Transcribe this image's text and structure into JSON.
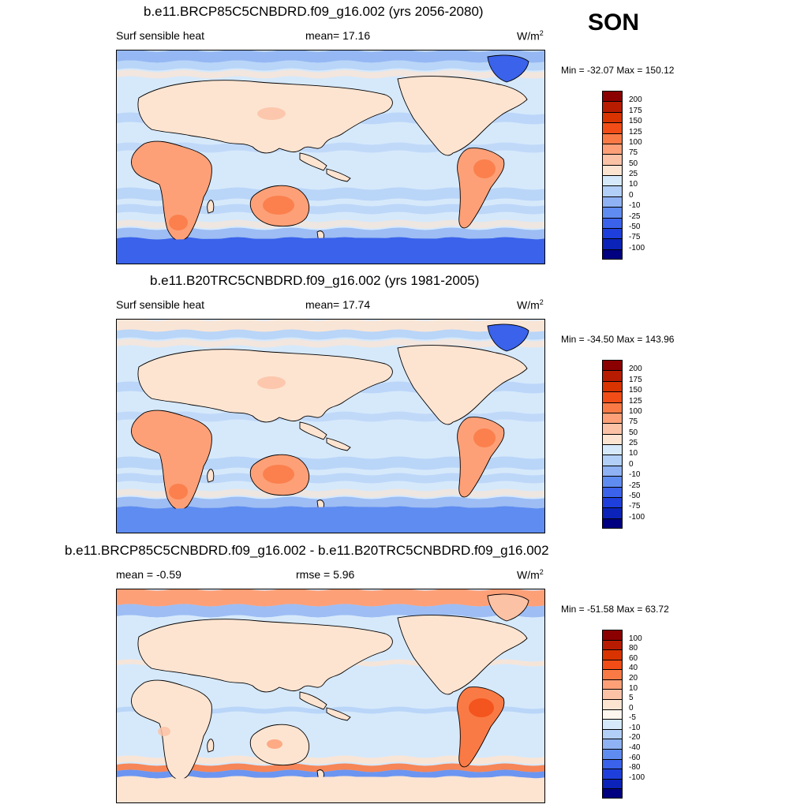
{
  "season": "SON",
  "panels": [
    {
      "title": "b.e11.BRCP85C5CNBDRD.f09_g16.002 (yrs 2056-2080)",
      "left_label": "Surf sensible heat",
      "center_label": "mean=  17.16",
      "unit": "W/m",
      "unit_sup": "2",
      "minmax": "Min = -32.07 Max = 150.12",
      "map_variant": "future",
      "colorbar": {
        "colors": [
          "#8b0000",
          "#b81c00",
          "#d93300",
          "#f24d16",
          "#fa7a45",
          "#fda078",
          "#fcc2a6",
          "#fde4d1",
          "#d6e9fb",
          "#b2cff8",
          "#8eb2f3",
          "#5f8cf0",
          "#3a62ea",
          "#1e3fdc",
          "#0b23b8",
          "#000080"
        ],
        "labels": [
          "200",
          "175",
          "150",
          "125",
          "100",
          "75",
          "50",
          "25",
          "10",
          "0",
          "-10",
          "-25",
          "-50",
          "-75",
          "-100"
        ]
      }
    },
    {
      "title": "b.e11.B20TRC5CNBDRD.f09_g16.002 (yrs 1981-2005)",
      "left_label": "Surf sensible heat",
      "center_label": "mean=  17.74",
      "unit": "W/m",
      "unit_sup": "2",
      "minmax": "Min = -34.50 Max = 143.96",
      "map_variant": "historical",
      "colorbar": {
        "colors": [
          "#8b0000",
          "#b81c00",
          "#d93300",
          "#f24d16",
          "#fa7a45",
          "#fda078",
          "#fcc2a6",
          "#fde4d1",
          "#d6e9fb",
          "#b2cff8",
          "#8eb2f3",
          "#5f8cf0",
          "#3a62ea",
          "#1e3fdc",
          "#0b23b8",
          "#000080"
        ],
        "labels": [
          "200",
          "175",
          "150",
          "125",
          "100",
          "75",
          "50",
          "25",
          "10",
          "0",
          "-10",
          "-25",
          "-50",
          "-75",
          "-100"
        ]
      }
    },
    {
      "title": "b.e11.BRCP85C5CNBDRD.f09_g16.002 - b.e11.B20TRC5CNBDRD.f09_g16.002",
      "left_label": "mean =  -0.59",
      "center_label": "rmse =   5.96",
      "unit": "W/m",
      "unit_sup": "2",
      "minmax": "Min = -51.58 Max =  63.72",
      "map_variant": "difference",
      "colorbar": {
        "colors": [
          "#8b0000",
          "#b81c00",
          "#d93300",
          "#f24d16",
          "#fa7a45",
          "#fda078",
          "#fcc2a6",
          "#fde4d1",
          "#fdf6ee",
          "#d6e9fb",
          "#b2cff8",
          "#8eb2f3",
          "#5f8cf0",
          "#3a62ea",
          "#1e3fdc",
          "#0b23b8",
          "#000080"
        ],
        "labels": [
          "100",
          "80",
          "60",
          "40",
          "20",
          "10",
          "5",
          "0",
          "-5",
          "-10",
          "-20",
          "-40",
          "-60",
          "-80",
          "-100"
        ]
      }
    }
  ]
}
